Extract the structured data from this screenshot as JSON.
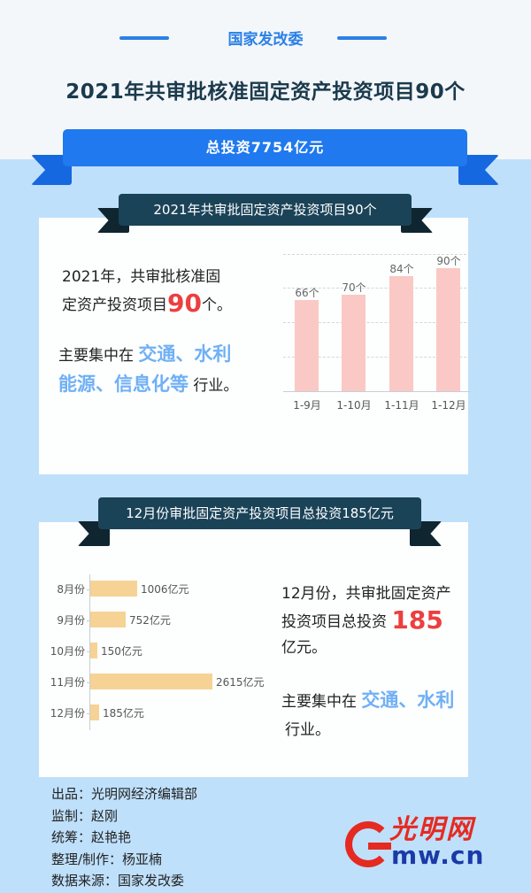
{
  "header": {
    "org": "国家发改委",
    "title": "2021年共审批核准固定资产投资项目90个"
  },
  "banner": {
    "total": "总投资7754亿元"
  },
  "section1": {
    "ribbon": "2021年共审批固定资产投资项目90个",
    "text_line1": "2021年，共审批核准固",
    "text_line2_pre": "定资产投资项目",
    "text_line2_num": "90",
    "text_line2_post": "个。",
    "focus_pre": "主要集中在 ",
    "focus_hl1": "交通、水利",
    "focus_hl2": "能源、信息化等",
    "focus_post": " 行业。"
  },
  "section2": {
    "ribbon": "12月份审批固定资产投资项目总投资185亿元",
    "text_line1": "12月份，共审批固定资产",
    "text_line2_pre": "投资项目总投资 ",
    "text_line2_num": "185",
    "text_line3": "亿元。",
    "focus_pre": "主要集中在 ",
    "focus_hl": "交通、水利",
    "focus_post": "行业。"
  },
  "credits": [
    "出品：光明网经济编辑部",
    "监制：赵刚",
    "统筹：赵艳艳",
    "整理/制作：杨亚楠",
    "数据来源：国家发改委"
  ],
  "logo": {
    "cn": "光明网",
    "url": "mw.cn",
    "g": "G"
  },
  "colors": {
    "accent_blue": "#2079ee",
    "dark_ribbon": "#1b4358",
    "highlight_red": "#ec3f3f",
    "highlight_blue": "#6fb0f5",
    "bar_pink": "#fac9c5",
    "bar_orange": "#f6d395",
    "background": "#bfe0fb"
  },
  "chart_data": [
    {
      "type": "bar",
      "title": "2021年共审批固定资产投资项目90个",
      "categories": [
        "1-9月",
        "1-10月",
        "1-11月",
        "1-12月"
      ],
      "values": [
        66,
        70,
        84,
        90
      ],
      "labels": [
        "66个",
        "70个",
        "84个",
        "90个"
      ],
      "xlabel": "",
      "ylabel": "",
      "ylim": [
        0,
        100
      ],
      "grid": true
    },
    {
      "type": "bar",
      "orientation": "horizontal",
      "title": "12月份审批固定资产投资项目总投资185亿元",
      "categories": [
        "8月份",
        "9月份",
        "10月份",
        "11月份",
        "12月份"
      ],
      "values": [
        1006,
        752,
        150,
        2615,
        185
      ],
      "labels": [
        "1006亿元",
        "752亿元",
        "150亿元",
        "2615亿元",
        "185亿元"
      ],
      "unit": "亿元",
      "xlabel": "",
      "ylabel": "",
      "grid": false
    }
  ]
}
